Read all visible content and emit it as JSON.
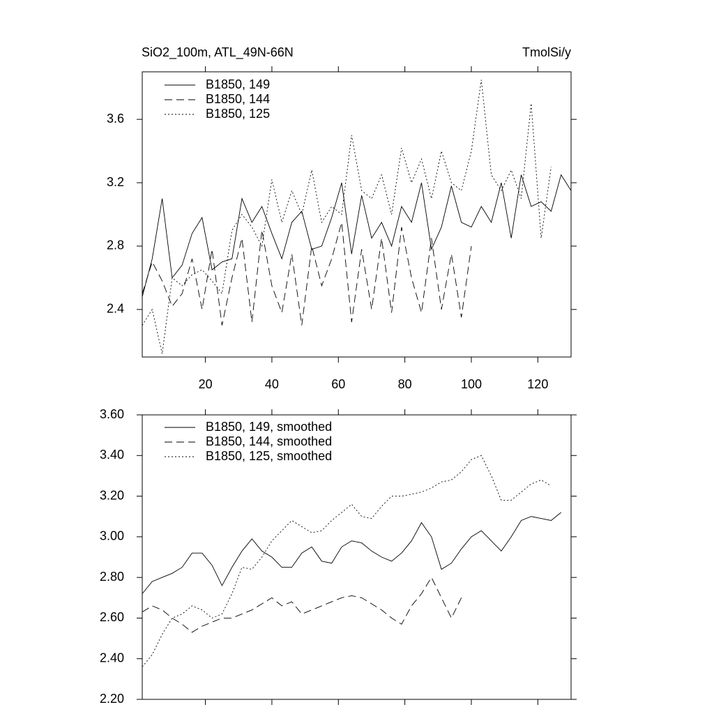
{
  "chart_data": [
    {
      "type": "line",
      "title": "SiO2_100m, ATL_49N-66N",
      "right_title": "TmolSi/y",
      "x": [
        1,
        4,
        7,
        10,
        13,
        16,
        19,
        22,
        25,
        28,
        31,
        34,
        37,
        40,
        43,
        46,
        49,
        52,
        55,
        58,
        61,
        64,
        67,
        70,
        73,
        76,
        79,
        82,
        85,
        88,
        91,
        94,
        97,
        100,
        103,
        106,
        109,
        112,
        115,
        118,
        121,
        124,
        127,
        130
      ],
      "xlim": [
        1,
        130
      ],
      "xticks": [
        20,
        40,
        60,
        80,
        100,
        120
      ],
      "show_xtick_labels": true,
      "ylim": [
        2.1,
        3.9
      ],
      "yticks": [
        2.4,
        2.8,
        3.2,
        3.6
      ],
      "series": [
        {
          "name": "B1850, 149",
          "color": "#000000",
          "dash": "solid",
          "values": [
            2.48,
            2.72,
            3.1,
            2.6,
            2.68,
            2.88,
            2.98,
            2.65,
            2.7,
            2.72,
            3.1,
            2.95,
            3.05,
            2.88,
            2.72,
            2.95,
            3.02,
            2.78,
            2.8,
            2.98,
            3.2,
            2.75,
            3.12,
            2.85,
            2.95,
            2.8,
            3.05,
            2.95,
            3.2,
            2.78,
            2.92,
            3.18,
            2.95,
            2.92,
            3.05,
            2.95,
            3.2,
            2.85,
            3.25,
            3.05,
            3.08,
            3.02,
            3.25,
            3.15
          ]
        },
        {
          "name": "B1850, 144",
          "color": "#000000",
          "dash": "dashed",
          "values": [
            2.5,
            2.7,
            2.58,
            2.42,
            2.5,
            2.72,
            2.4,
            2.78,
            2.3,
            2.6,
            2.85,
            2.32,
            2.9,
            2.55,
            2.38,
            2.75,
            2.3,
            2.8,
            2.55,
            2.72,
            2.95,
            2.32,
            2.78,
            2.4,
            2.85,
            2.38,
            2.92,
            2.6,
            2.38,
            2.85,
            2.4,
            2.75,
            2.35,
            2.8,
            null,
            null,
            null,
            null,
            null,
            null,
            null,
            null,
            null,
            null
          ]
        },
        {
          "name": "B1850, 125",
          "color": "#000000",
          "dash": "dotted",
          "values": [
            2.3,
            2.4,
            2.12,
            2.6,
            2.55,
            2.62,
            2.65,
            2.58,
            2.5,
            2.9,
            3.0,
            2.92,
            2.8,
            3.22,
            2.95,
            3.15,
            3.0,
            3.28,
            2.95,
            3.05,
            3.0,
            3.5,
            3.15,
            3.1,
            3.25,
            3.0,
            3.42,
            3.2,
            3.35,
            3.1,
            3.4,
            3.2,
            3.15,
            3.4,
            3.85,
            3.25,
            3.15,
            3.28,
            3.1,
            3.7,
            2.85,
            3.3,
            null,
            null
          ]
        }
      ]
    },
    {
      "type": "line",
      "x": [
        1,
        4,
        7,
        10,
        13,
        16,
        19,
        22,
        25,
        28,
        31,
        34,
        37,
        40,
        43,
        46,
        49,
        52,
        55,
        58,
        61,
        64,
        67,
        70,
        73,
        76,
        79,
        82,
        85,
        88,
        91,
        94,
        97,
        100,
        103,
        106,
        109,
        112,
        115,
        118,
        121,
        124,
        127,
        130
      ],
      "xlim": [
        1,
        130
      ],
      "xticks": [
        20,
        40,
        60,
        80,
        100,
        120
      ],
      "show_xtick_labels": false,
      "ylim": [
        2.2,
        3.6
      ],
      "yticks": [
        {
          "value": 2.2,
          "label": "2.20"
        },
        {
          "value": 2.4,
          "label": "2.40"
        },
        {
          "value": 2.6,
          "label": "2.60"
        },
        {
          "value": 2.8,
          "label": "2.80"
        },
        {
          "value": 3.0,
          "label": "3.00"
        },
        {
          "value": 3.2,
          "label": "3.20"
        },
        {
          "value": 3.4,
          "label": "3.40"
        },
        {
          "value": 3.6,
          "label": "3.60"
        }
      ],
      "series": [
        {
          "name": "B1850, 149, smoothed",
          "color": "#000000",
          "dash": "solid",
          "values": [
            2.72,
            2.78,
            2.8,
            2.82,
            2.85,
            2.92,
            2.92,
            2.86,
            2.76,
            2.85,
            2.93,
            2.99,
            2.93,
            2.9,
            2.85,
            2.85,
            2.92,
            2.95,
            2.88,
            2.87,
            2.95,
            2.98,
            2.97,
            2.93,
            2.9,
            2.88,
            2.92,
            2.98,
            3.07,
            3.0,
            2.84,
            2.87,
            2.94,
            3.0,
            3.03,
            2.98,
            2.93,
            3.0,
            3.08,
            3.1,
            3.09,
            3.08,
            3.12,
            null
          ]
        },
        {
          "name": "B1850, 144, smoothed",
          "color": "#000000",
          "dash": "dashed",
          "values": [
            2.63,
            2.66,
            2.64,
            2.6,
            2.57,
            2.53,
            2.56,
            2.58,
            2.6,
            2.6,
            2.62,
            2.64,
            2.67,
            2.7,
            2.66,
            2.68,
            2.62,
            2.64,
            2.66,
            2.68,
            2.7,
            2.71,
            2.7,
            2.67,
            2.64,
            2.6,
            2.57,
            2.66,
            2.72,
            2.8,
            2.7,
            2.6,
            2.7,
            null,
            null,
            null,
            null,
            null,
            null,
            null,
            null,
            null,
            null,
            null
          ]
        },
        {
          "name": "B1850, 125, smoothed",
          "color": "#000000",
          "dash": "dotted",
          "values": [
            2.36,
            2.42,
            2.52,
            2.6,
            2.62,
            2.66,
            2.64,
            2.6,
            2.62,
            2.72,
            2.85,
            2.84,
            2.9,
            2.98,
            3.03,
            3.08,
            3.05,
            3.02,
            3.03,
            3.08,
            3.12,
            3.16,
            3.1,
            3.09,
            3.15,
            3.2,
            3.2,
            3.21,
            3.22,
            3.24,
            3.27,
            3.28,
            3.32,
            3.38,
            3.4,
            3.3,
            3.18,
            3.18,
            3.22,
            3.26,
            3.28,
            3.25,
            null,
            null
          ]
        }
      ]
    }
  ]
}
